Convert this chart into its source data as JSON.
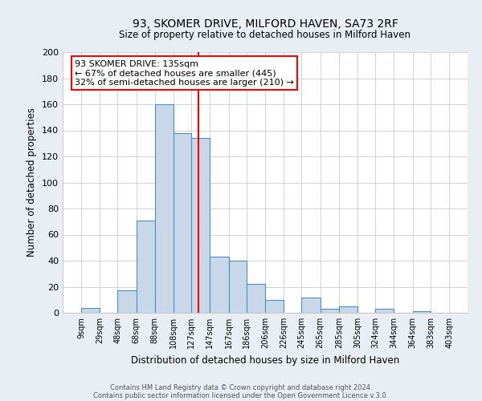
{
  "title": "93, SKOMER DRIVE, MILFORD HAVEN, SA73 2RF",
  "subtitle": "Size of property relative to detached houses in Milford Haven",
  "xlabel": "Distribution of detached houses by size in Milford Haven",
  "ylabel": "Number of detached properties",
  "footer1": "Contains HM Land Registry data © Crown copyright and database right 2024.",
  "footer2": "Contains public sector information licensed under the Open Government Licence v.3.0.",
  "bar_edges": [
    9,
    29,
    48,
    68,
    88,
    108,
    127,
    147,
    167,
    186,
    206,
    226,
    245,
    265,
    285,
    305,
    324,
    344,
    364,
    383,
    403
  ],
  "bar_heights": [
    4,
    0,
    17,
    71,
    160,
    138,
    134,
    43,
    40,
    22,
    10,
    0,
    12,
    3,
    5,
    0,
    3,
    0,
    1,
    0
  ],
  "bar_color": "#c8d8e8",
  "bar_edge_color": "#4a90c4",
  "bar_linewidth": 0.8,
  "vline_x": 135,
  "vline_color": "red",
  "vline_linewidth": 1.5,
  "ylim": [
    0,
    200
  ],
  "yticks": [
    0,
    20,
    40,
    60,
    80,
    100,
    120,
    140,
    160,
    180,
    200
  ],
  "xtick_labels": [
    "9sqm",
    "29sqm",
    "48sqm",
    "68sqm",
    "88sqm",
    "108sqm",
    "127sqm",
    "147sqm",
    "167sqm",
    "186sqm",
    "206sqm",
    "226sqm",
    "245sqm",
    "265sqm",
    "285sqm",
    "305sqm",
    "324sqm",
    "344sqm",
    "364sqm",
    "383sqm",
    "403sqm"
  ],
  "annotation_title": "93 SKOMER DRIVE: 135sqm",
  "annotation_line1": "← 67% of detached houses are smaller (445)",
  "annotation_line2": "32% of semi-detached houses are larger (210) →",
  "box_edge_color": "red",
  "bg_color": "#e8eef4",
  "plot_bg": "#ffffff",
  "grid_color": "#cccccc"
}
